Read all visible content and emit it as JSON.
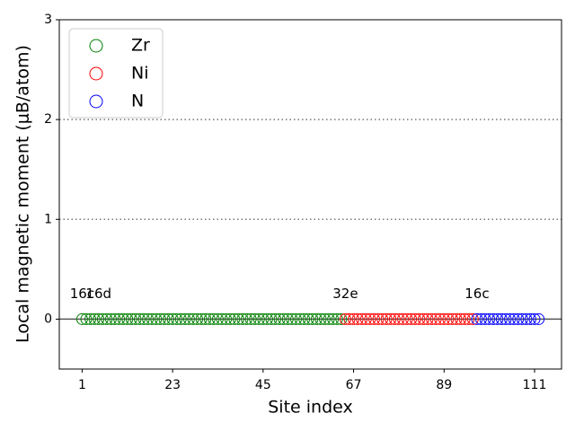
{
  "chart_data": {
    "type": "scatter",
    "xlabel": "Site index",
    "ylabel": "Local magnetic moment (μB/atom)",
    "xlim": [
      -4.55,
      117.55
    ],
    "ylim": [
      -0.5,
      3
    ],
    "xticks": [
      1,
      23,
      45,
      67,
      89,
      111
    ],
    "yticks": [
      0,
      1,
      2,
      3
    ],
    "legend": "upper left",
    "reference_lines": [
      {
        "y": 0,
        "style": "solid"
      },
      {
        "y": 1,
        "style": "dotted"
      },
      {
        "y": 2,
        "style": "dotted"
      }
    ],
    "annotations": [
      {
        "text": "16c",
        "x": 1,
        "y": 0.25
      },
      {
        "text": "16d",
        "x": 5,
        "y": 0.25
      },
      {
        "text": "32e",
        "x": 65,
        "y": 0.25
      },
      {
        "text": "16c",
        "x": 97,
        "y": 0.25
      }
    ],
    "series": [
      {
        "name": "Zr",
        "color": "green",
        "x": [
          1,
          2,
          3,
          4,
          5,
          6,
          7,
          8,
          9,
          10,
          11,
          12,
          13,
          14,
          15,
          16,
          17,
          18,
          19,
          20,
          21,
          22,
          23,
          24,
          25,
          26,
          27,
          28,
          29,
          30,
          31,
          32,
          33,
          34,
          35,
          36,
          37,
          38,
          39,
          40,
          41,
          42,
          43,
          44,
          45,
          46,
          47,
          48,
          49,
          50,
          51,
          52,
          53,
          54,
          55,
          56,
          57,
          58,
          59,
          60,
          61,
          62,
          63,
          64
        ],
        "values": [
          0,
          0,
          0,
          0,
          0,
          0,
          0,
          0,
          0,
          0,
          0,
          0,
          0,
          0,
          0,
          0,
          0,
          0,
          0,
          0,
          0,
          0,
          0,
          0,
          0,
          0,
          0,
          0,
          0,
          0,
          0,
          0,
          0,
          0,
          0,
          0,
          0,
          0,
          0,
          0,
          0,
          0,
          0,
          0,
          0,
          0,
          0,
          0,
          0,
          0,
          0,
          0,
          0,
          0,
          0,
          0,
          0,
          0,
          0,
          0,
          0,
          0,
          0,
          0
        ]
      },
      {
        "name": "Ni",
        "color": "red",
        "x": [
          65,
          66,
          67,
          68,
          69,
          70,
          71,
          72,
          73,
          74,
          75,
          76,
          77,
          78,
          79,
          80,
          81,
          82,
          83,
          84,
          85,
          86,
          87,
          88,
          89,
          90,
          91,
          92,
          93,
          94,
          95,
          96
        ],
        "values": [
          0,
          0,
          0,
          0,
          0,
          0,
          0,
          0,
          0,
          0,
          0,
          0,
          0,
          0,
          0,
          0,
          0,
          0,
          0,
          0,
          0,
          0,
          0,
          0,
          0,
          0,
          0,
          0,
          0,
          0,
          0,
          0
        ]
      },
      {
        "name": "N",
        "color": "blue",
        "x": [
          97,
          98,
          99,
          100,
          101,
          102,
          103,
          104,
          105,
          106,
          107,
          108,
          109,
          110,
          111,
          112
        ],
        "values": [
          0,
          0,
          0,
          0,
          0,
          0,
          0,
          0,
          0,
          0,
          0,
          0,
          0,
          0,
          0,
          0
        ]
      }
    ]
  }
}
